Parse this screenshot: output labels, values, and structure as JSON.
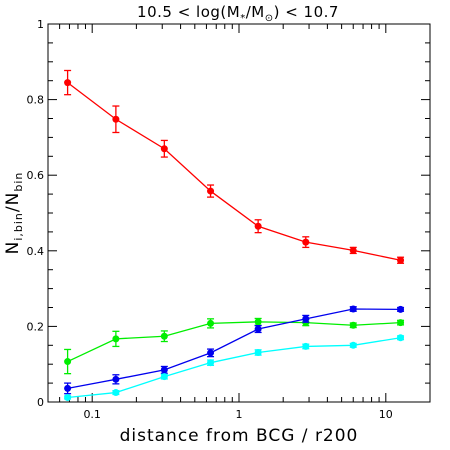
{
  "chart_data": {
    "type": "line",
    "title_parts": {
      "lead": "10.5 < log(M",
      "sub1": "*",
      "mid": "/M",
      "sub2": "⊙",
      "tail": ") < 10.7"
    },
    "xlabel": "distance from BCG / r200",
    "ylabel_parts": {
      "main1": "N",
      "sub1": "i,bin",
      "slash": "/N",
      "sub2": "bin"
    },
    "xscale": "log",
    "xlim": [
      0.05,
      20
    ],
    "ylim": [
      0,
      1
    ],
    "x_ticks": [
      {
        "value": 0.1,
        "label": "0.1"
      },
      {
        "value": 1,
        "label": "1"
      },
      {
        "value": 10,
        "label": "10"
      }
    ],
    "y_ticks": [
      {
        "value": 0,
        "label": "0"
      },
      {
        "value": 0.2,
        "label": "0.2"
      },
      {
        "value": 0.4,
        "label": "0.4"
      },
      {
        "value": 0.6,
        "label": "0.6"
      },
      {
        "value": 0.8,
        "label": "0.8"
      },
      {
        "value": 1,
        "label": "1"
      }
    ],
    "grid": false,
    "series": [
      {
        "color": "#ff0000",
        "x": [
          0.068,
          0.145,
          0.31,
          0.64,
          1.35,
          2.85,
          6.0,
          12.6
        ],
        "y": [
          0.845,
          0.748,
          0.67,
          0.558,
          0.465,
          0.423,
          0.401,
          0.375
        ],
        "err": [
          0.032,
          0.035,
          0.022,
          0.016,
          0.017,
          0.014,
          0.008,
          0.008
        ]
      },
      {
        "color": "#00ee00",
        "x": [
          0.068,
          0.145,
          0.31,
          0.64,
          1.35,
          2.85,
          6.0,
          12.6
        ],
        "y": [
          0.107,
          0.167,
          0.174,
          0.208,
          0.212,
          0.21,
          0.203,
          0.21
        ],
        "err": [
          0.032,
          0.02,
          0.014,
          0.012,
          0.009,
          0.008,
          0.006,
          0.006
        ]
      },
      {
        "color": "#0000ee",
        "x": [
          0.068,
          0.145,
          0.31,
          0.64,
          1.35,
          2.85,
          6.0,
          12.6
        ],
        "y": [
          0.036,
          0.06,
          0.085,
          0.13,
          0.193,
          0.22,
          0.246,
          0.245
        ],
        "err": [
          0.014,
          0.012,
          0.009,
          0.01,
          0.009,
          0.009,
          0.006,
          0.005
        ]
      },
      {
        "color": "#00ffff",
        "x": [
          0.068,
          0.145,
          0.31,
          0.64,
          1.35,
          2.85,
          6.0,
          12.6
        ],
        "y": [
          0.012,
          0.025,
          0.067,
          0.104,
          0.131,
          0.147,
          0.15,
          0.17
        ],
        "err": [
          0.004,
          0.005,
          0.006,
          0.007,
          0.007,
          0.006,
          0.005,
          0.005
        ]
      }
    ]
  }
}
